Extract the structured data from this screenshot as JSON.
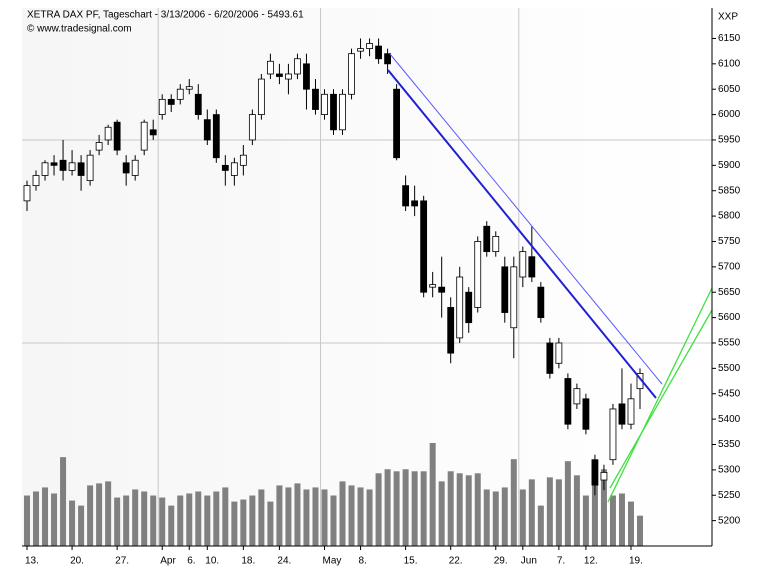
{
  "chart_data": {
    "type": "candlestick",
    "title": "XETRA DAX PF, Tageschart - 3/13/2006 - 6/20/2006 - 5493.61",
    "subtitle": "© www.tradesignal.com",
    "axis_label": "XXP",
    "categories": [
      "13.",
      null,
      null,
      null,
      null,
      "20.",
      null,
      null,
      null,
      null,
      "27.",
      null,
      null,
      null,
      null,
      "Apr",
      null,
      null,
      "6.",
      null,
      "10.",
      null,
      null,
      null,
      "18.",
      null,
      null,
      null,
      "24.",
      null,
      null,
      null,
      null,
      "May",
      null,
      null,
      null,
      "8.",
      null,
      null,
      null,
      null,
      "15.",
      null,
      null,
      null,
      null,
      "22.",
      null,
      null,
      null,
      null,
      "29.",
      null,
      null,
      "Jun",
      null,
      null,
      null,
      "7.",
      null,
      null,
      "12.",
      null,
      null,
      null,
      null,
      "19.",
      null
    ],
    "open": [
      5830,
      5860,
      5880,
      5905,
      5910,
      5890,
      5905,
      5870,
      5930,
      5950,
      5985,
      5905,
      5880,
      5930,
      5970,
      6000,
      6030,
      6030,
      6050,
      6040,
      5990,
      6000,
      5900,
      5880,
      5900,
      5950,
      6000,
      6080,
      6080,
      6070,
      6080,
      6100,
      6050,
      6000,
      6040,
      5970,
      6040,
      6125,
      6130,
      6135,
      6120,
      6050,
      5860,
      5830,
      5830,
      5660,
      5660,
      5620,
      5560,
      5650,
      5620,
      5780,
      5730,
      5700,
      5580,
      5680,
      5720,
      5660,
      5550,
      5510,
      5480,
      5430,
      5440,
      5320,
      5280,
      5320,
      5430,
      5390,
      5460
    ],
    "high": [
      5870,
      5890,
      5910,
      5920,
      5950,
      5930,
      5920,
      5930,
      5960,
      5980,
      5990,
      5920,
      5920,
      5990,
      5990,
      6040,
      6040,
      6060,
      6070,
      6060,
      6010,
      6010,
      5920,
      5915,
      5940,
      6010,
      6080,
      6120,
      6100,
      6100,
      6120,
      6120,
      6070,
      6050,
      6050,
      6050,
      6130,
      6150,
      6150,
      6150,
      6130,
      6060,
      5880,
      5860,
      5840,
      5690,
      5720,
      5640,
      5700,
      5660,
      5760,
      5790,
      5770,
      5720,
      5720,
      5740,
      5780,
      5670,
      5560,
      5560,
      5490,
      5470,
      5450,
      5330,
      5310,
      5430,
      5500,
      5470,
      5500
    ],
    "low": [
      5810,
      5850,
      5870,
      5880,
      5870,
      5880,
      5850,
      5860,
      5920,
      5940,
      5920,
      5860,
      5870,
      5920,
      5950,
      5990,
      6005,
      6020,
      6040,
      5990,
      5940,
      5905,
      5860,
      5860,
      5880,
      5940,
      5990,
      6070,
      6060,
      6040,
      6070,
      6010,
      6000,
      5990,
      5960,
      5960,
      6030,
      6110,
      6115,
      6100,
      6080,
      5910,
      5810,
      5800,
      5640,
      5640,
      5600,
      5510,
      5550,
      5570,
      5610,
      5720,
      5720,
      5590,
      5520,
      5660,
      5670,
      5590,
      5480,
      5500,
      5380,
      5420,
      5370,
      5250,
      5260,
      5310,
      5380,
      5380,
      5420
    ],
    "close": [
      5860,
      5880,
      5905,
      5900,
      5890,
      5905,
      5880,
      5920,
      5945,
      5975,
      5930,
      5885,
      5910,
      5985,
      5960,
      6030,
      6020,
      6050,
      6055,
      6000,
      5950,
      5915,
      5890,
      5905,
      5920,
      6000,
      6070,
      6105,
      6075,
      6080,
      6110,
      6050,
      6010,
      6040,
      5970,
      6040,
      6120,
      6130,
      6140,
      6110,
      6100,
      5915,
      5820,
      5820,
      5650,
      5665,
      5650,
      5530,
      5680,
      5590,
      5750,
      5730,
      5760,
      5610,
      5700,
      5730,
      5680,
      5600,
      5490,
      5550,
      5390,
      5460,
      5380,
      5270,
      5295,
      5420,
      5390,
      5440,
      5490
    ],
    "volume": [
      50,
      54,
      58,
      52,
      88,
      45,
      40,
      60,
      62,
      64,
      48,
      50,
      56,
      54,
      50,
      48,
      40,
      50,
      52,
      54,
      50,
      54,
      58,
      44,
      46,
      50,
      56,
      44,
      60,
      58,
      62,
      56,
      58,
      56,
      50,
      64,
      60,
      58,
      56,
      72,
      76,
      74,
      76,
      74,
      74,
      102,
      64,
      74,
      72,
      70,
      72,
      56,
      54,
      58,
      86,
      56,
      66,
      40,
      68,
      66,
      84,
      70,
      50,
      66,
      76,
      50,
      52,
      44,
      30
    ],
    "volume_color": "#808080",
    "ylim": [
      5150,
      6210
    ],
    "yticks": [
      5200,
      5250,
      5300,
      5350,
      5400,
      5450,
      5500,
      5550,
      5600,
      5650,
      5700,
      5750,
      5800,
      5850,
      5900,
      5950,
      6000,
      6050,
      6100,
      6150
    ],
    "ygrid": [
      5550,
      5950
    ]
  }
}
